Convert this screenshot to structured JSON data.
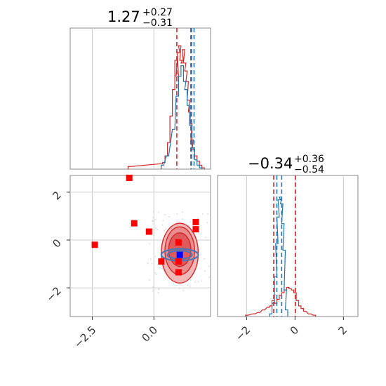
{
  "chart_data": [
    {
      "type": "histogram",
      "panel": "marginal-param-1",
      "title": {
        "main": "1.27",
        "plus": "+0.27",
        "minus": "−0.31"
      },
      "xlim": [
        -3.4,
        2.3
      ],
      "grid": true,
      "gridlines_x": [
        -2.5,
        0.0
      ],
      "series": [
        {
          "color": "#d62728",
          "bins": [
            [
              -1.0,
              0.02
            ],
            [
              0.3,
              0.04
            ],
            [
              0.4,
              0.05
            ],
            [
              0.5,
              0.1
            ],
            [
              0.6,
              0.2
            ],
            [
              0.7,
              0.4
            ],
            [
              0.8,
              0.6
            ],
            [
              0.9,
              0.82
            ],
            [
              0.95,
              0.7
            ],
            [
              1.0,
              0.88
            ],
            [
              1.05,
              0.93
            ],
            [
              1.1,
              0.82
            ],
            [
              1.15,
              0.8
            ],
            [
              1.2,
              0.9
            ],
            [
              1.25,
              0.8
            ],
            [
              1.3,
              0.74
            ],
            [
              1.35,
              0.66
            ],
            [
              1.4,
              0.52
            ],
            [
              1.45,
              0.43
            ],
            [
              1.5,
              0.34
            ],
            [
              1.55,
              0.22
            ],
            [
              1.6,
              0.15
            ],
            [
              1.7,
              0.1
            ],
            [
              1.8,
              0.06
            ],
            [
              1.9,
              0.03
            ],
            [
              2.0,
              0.01
            ]
          ]
        },
        {
          "color": "#1f77b4",
          "bins": [
            [
              0.35,
              0.03
            ],
            [
              0.55,
              0.1
            ],
            [
              0.8,
              0.3
            ],
            [
              0.95,
              0.55
            ],
            [
              1.05,
              0.7
            ],
            [
              1.15,
              0.78
            ],
            [
              1.25,
              0.66
            ],
            [
              1.3,
              0.6
            ],
            [
              1.4,
              0.48
            ],
            [
              1.5,
              0.33
            ],
            [
              1.6,
              0.16
            ],
            [
              1.7,
              0.07
            ],
            [
              1.8,
              0.03
            ],
            [
              1.9,
              0.01
            ]
          ]
        }
      ],
      "vlines": [
        {
          "color": "#d62728",
          "x": 0.93
        },
        {
          "color": "#d62728",
          "x": 1.5
        },
        {
          "color": "#1f77b4",
          "x": 1.53
        },
        {
          "color": "#1f77b4",
          "x": 1.63
        }
      ]
    },
    {
      "type": "scatter",
      "panel": "joint",
      "xlim": [
        -3.4,
        2.3
      ],
      "ylim": [
        -3.2,
        2.7
      ],
      "xticks": [
        -2.5,
        0.0
      ],
      "yticks": [
        2,
        0,
        -2
      ],
      "xtick_labels": [
        "−2.5",
        "0.0"
      ],
      "ytick_labels": [
        "2",
        "0",
        "−2"
      ],
      "grid": true,
      "points_red": [
        [
          -1.0,
          2.6
        ],
        [
          -0.8,
          0.7
        ],
        [
          -2.4,
          -0.2
        ],
        [
          -0.2,
          0.35
        ],
        [
          1.7,
          0.75
        ],
        [
          1.7,
          0.45
        ],
        [
          0.3,
          -0.9
        ],
        [
          1.0,
          -0.1
        ],
        [
          1.0,
          -0.9
        ],
        [
          1.0,
          -1.35
        ]
      ],
      "point_blue": [
        1.05,
        -0.62
      ],
      "contours_red_levels": [
        {
          "cx": 1.05,
          "cy": -0.55,
          "rx": 0.75,
          "ry": 1.25,
          "fill": "#f2b8b8"
        },
        {
          "cx": 1.05,
          "cy": -0.45,
          "rx": 0.6,
          "ry": 1.0,
          "fill": "#ea8d8e"
        },
        {
          "cx": 1.05,
          "cy": -0.4,
          "rx": 0.45,
          "ry": 0.7,
          "fill": "#e05a5b"
        }
      ],
      "contours_blue_levels": [
        {
          "cx": 1.05,
          "cy": -0.62,
          "rx": 0.75,
          "ry": 0.25
        },
        {
          "cx": 1.05,
          "cy": -0.62,
          "rx": 0.5,
          "ry": 0.17
        }
      ]
    },
    {
      "type": "histogram",
      "panel": "marginal-param-2",
      "title": {
        "main": "−0.34",
        "plus": "+0.36",
        "minus": "−0.54"
      },
      "xlim": [
        -3.2,
        2.6
      ],
      "xticks": [
        -2,
        0,
        2
      ],
      "xtick_labels": [
        "−2",
        "0",
        "2"
      ],
      "grid": true,
      "series": [
        {
          "color": "#d62728",
          "bins": [
            [
              -2.0,
              0.01
            ],
            [
              -1.7,
              0.02
            ],
            [
              -1.5,
              0.03
            ],
            [
              -1.3,
              0.05
            ],
            [
              -1.1,
              0.07
            ],
            [
              -1.0,
              0.08
            ],
            [
              -0.9,
              0.12
            ],
            [
              -0.8,
              0.1
            ],
            [
              -0.7,
              0.13
            ],
            [
              -0.6,
              0.16
            ],
            [
              -0.5,
              0.18
            ],
            [
              -0.4,
              0.2
            ],
            [
              -0.3,
              0.22
            ],
            [
              -0.2,
              0.21
            ],
            [
              -0.1,
              0.2
            ],
            [
              0.0,
              0.18
            ],
            [
              0.1,
              0.12
            ],
            [
              0.2,
              0.08
            ],
            [
              0.3,
              0.06
            ],
            [
              0.4,
              0.04
            ],
            [
              0.6,
              0.02
            ],
            [
              0.8,
              0.01
            ]
          ]
        },
        {
          "color": "#1f77b4",
          "bins": [
            [
              -1.0,
              0.02
            ],
            [
              -0.9,
              0.1
            ],
            [
              -0.8,
              0.3
            ],
            [
              -0.75,
              0.55
            ],
            [
              -0.7,
              0.75
            ],
            [
              -0.65,
              0.88
            ],
            [
              -0.6,
              0.9
            ],
            [
              -0.55,
              0.85
            ],
            [
              -0.5,
              0.7
            ],
            [
              -0.45,
              0.5
            ],
            [
              -0.4,
              0.2
            ],
            [
              -0.35,
              0.05
            ]
          ]
        }
      ],
      "vlines": [
        {
          "color": "#d62728",
          "x": -0.88
        },
        {
          "color": "#1f77b4",
          "x": -0.75
        },
        {
          "color": "#1f77b4",
          "x": -0.55
        },
        {
          "color": "#d62728",
          "x": 0.02
        }
      ]
    }
  ]
}
